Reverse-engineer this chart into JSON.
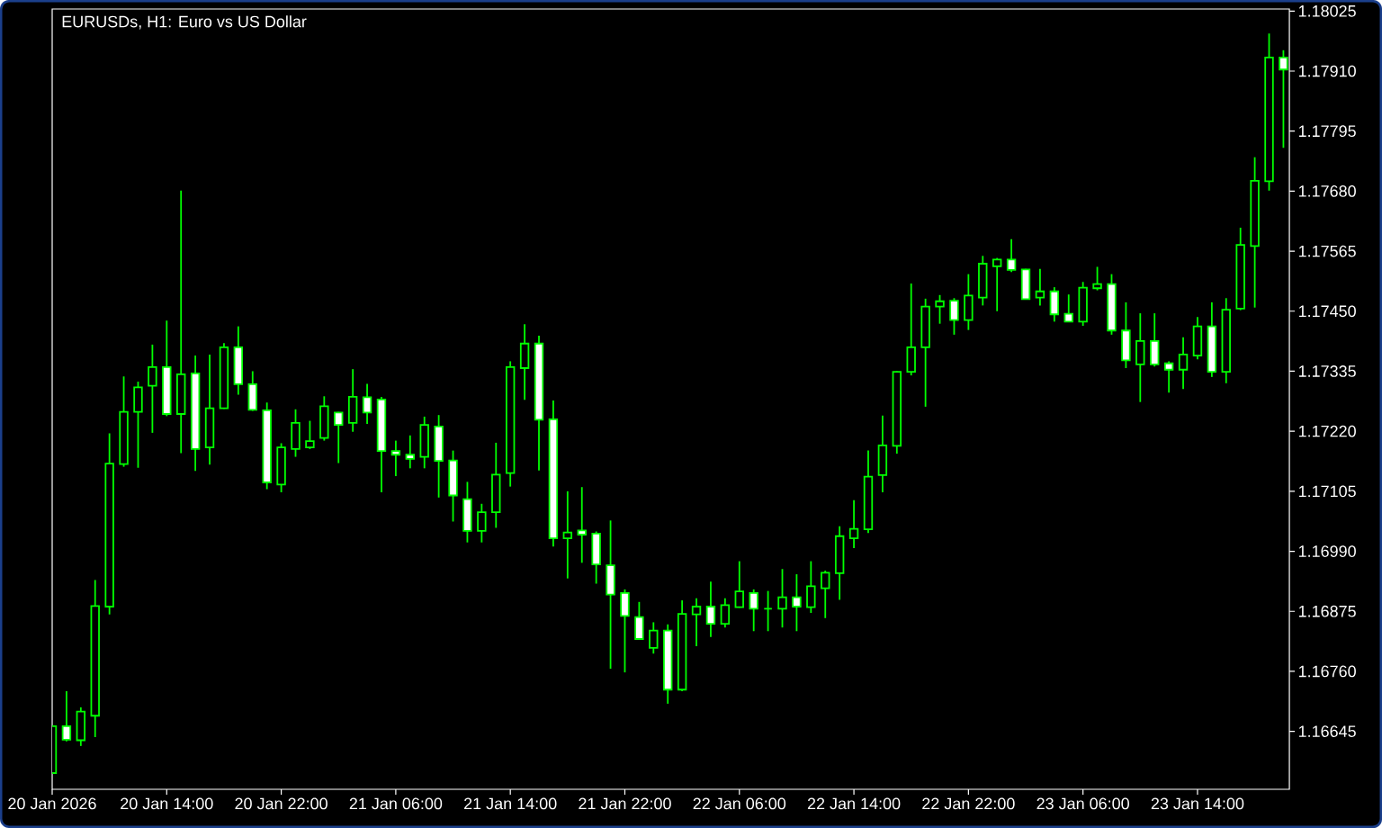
{
  "chart_data": {
    "type": "candlestick",
    "title": "EURUSDs, H1: Euro vs US Dollar",
    "x": [
      "2026-01-20T06:00",
      "2026-01-20T07:00",
      "2026-01-20T08:00",
      "2026-01-20T09:00",
      "2026-01-20T10:00",
      "2026-01-20T11:00",
      "2026-01-20T12:00",
      "2026-01-20T13:00",
      "2026-01-20T14:00",
      "2026-01-20T15:00",
      "2026-01-20T16:00",
      "2026-01-20T17:00",
      "2026-01-20T18:00",
      "2026-01-20T19:00",
      "2026-01-20T20:00",
      "2026-01-20T21:00",
      "2026-01-20T22:00",
      "2026-01-20T23:00",
      "2026-01-21T00:00",
      "2026-01-21T01:00",
      "2026-01-21T02:00",
      "2026-01-21T03:00",
      "2026-01-21T04:00",
      "2026-01-21T05:00",
      "2026-01-21T06:00",
      "2026-01-21T07:00",
      "2026-01-21T08:00",
      "2026-01-21T09:00",
      "2026-01-21T10:00",
      "2026-01-21T11:00",
      "2026-01-21T12:00",
      "2026-01-21T13:00",
      "2026-01-21T14:00",
      "2026-01-21T15:00",
      "2026-01-21T16:00",
      "2026-01-21T17:00",
      "2026-01-21T18:00",
      "2026-01-21T19:00",
      "2026-01-21T20:00",
      "2026-01-21T21:00",
      "2026-01-21T22:00",
      "2026-01-21T23:00",
      "2026-01-22T00:00",
      "2026-01-22T01:00",
      "2026-01-22T02:00",
      "2026-01-22T03:00",
      "2026-01-22T04:00",
      "2026-01-22T05:00",
      "2026-01-22T06:00",
      "2026-01-22T07:00",
      "2026-01-22T08:00",
      "2026-01-22T09:00",
      "2026-01-22T10:00",
      "2026-01-22T11:00",
      "2026-01-22T12:00",
      "2026-01-22T13:00",
      "2026-01-22T14:00",
      "2026-01-22T15:00",
      "2026-01-22T16:00",
      "2026-01-22T17:00",
      "2026-01-22T18:00",
      "2026-01-22T19:00",
      "2026-01-22T20:00",
      "2026-01-22T21:00",
      "2026-01-22T22:00",
      "2026-01-22T23:00",
      "2026-01-23T00:00",
      "2026-01-23T01:00",
      "2026-01-23T02:00",
      "2026-01-23T03:00",
      "2026-01-23T04:00",
      "2026-01-23T05:00",
      "2026-01-23T06:00",
      "2026-01-23T07:00",
      "2026-01-23T08:00",
      "2026-01-23T09:00",
      "2026-01-23T10:00",
      "2026-01-23T11:00",
      "2026-01-23T12:00",
      "2026-01-23T13:00",
      "2026-01-23T14:00",
      "2026-01-23T15:00",
      "2026-01-23T16:00",
      "2026-01-23T17:00",
      "2026-01-23T18:00",
      "2026-01-23T19:00",
      "2026-01-23T20:00"
    ],
    "ohlc": [
      [
        1.16565,
        1.16657,
        1.16564,
        1.16655
      ],
      [
        1.16655,
        1.16722,
        1.16626,
        1.16629
      ],
      [
        1.16628,
        1.16691,
        1.16617,
        1.16683
      ],
      [
        1.16675,
        1.16935,
        1.16634,
        1.16885
      ],
      [
        1.16884,
        1.17216,
        1.16869,
        1.17158
      ],
      [
        1.17157,
        1.17325,
        1.17152,
        1.17257
      ],
      [
        1.17257,
        1.17315,
        1.1715,
        1.17304
      ],
      [
        1.17307,
        1.17386,
        1.17217,
        1.17343
      ],
      [
        1.17343,
        1.17432,
        1.17249,
        1.17253
      ],
      [
        1.17253,
        1.17681,
        1.17178,
        1.17329
      ],
      [
        1.17331,
        1.17365,
        1.17144,
        1.17186
      ],
      [
        1.17189,
        1.17367,
        1.17156,
        1.17264
      ],
      [
        1.17264,
        1.17389,
        1.17263,
        1.17381
      ],
      [
        1.17381,
        1.17421,
        1.1729,
        1.1731
      ],
      [
        1.1731,
        1.17335,
        1.17259,
        1.17261
      ],
      [
        1.1726,
        1.17275,
        1.17109,
        1.17122
      ],
      [
        1.17118,
        1.17197,
        1.17103,
        1.17189
      ],
      [
        1.17186,
        1.17262,
        1.17171,
        1.17236
      ],
      [
        1.17189,
        1.1724,
        1.17186,
        1.17201
      ],
      [
        1.17207,
        1.17287,
        1.17202,
        1.17268
      ],
      [
        1.17256,
        1.17257,
        1.17159,
        1.17232
      ],
      [
        1.17236,
        1.17339,
        1.17219,
        1.17286
      ],
      [
        1.17285,
        1.17311,
        1.17234,
        1.17256
      ],
      [
        1.17281,
        1.17286,
        1.17103,
        1.17182
      ],
      [
        1.17182,
        1.17202,
        1.17134,
        1.17175
      ],
      [
        1.17175,
        1.17212,
        1.17149,
        1.17167
      ],
      [
        1.17171,
        1.17248,
        1.17149,
        1.17232
      ],
      [
        1.17229,
        1.17251,
        1.17093,
        1.17163
      ],
      [
        1.17164,
        1.17183,
        1.17047,
        1.17097
      ],
      [
        1.1709,
        1.17123,
        1.17007,
        1.17029
      ],
      [
        1.17029,
        1.17081,
        1.17007,
        1.17065
      ],
      [
        1.17065,
        1.17198,
        1.17035,
        1.17137
      ],
      [
        1.1714,
        1.17354,
        1.17114,
        1.17343
      ],
      [
        1.17341,
        1.17425,
        1.1728,
        1.17388
      ],
      [
        1.17388,
        1.17403,
        1.17145,
        1.17242
      ],
      [
        1.17243,
        1.17279,
        1.16999,
        1.17015
      ],
      [
        1.17015,
        1.17105,
        1.16938,
        1.17026
      ],
      [
        1.1703,
        1.17113,
        1.16968,
        1.17022
      ],
      [
        1.17024,
        1.17028,
        1.16928,
        1.16965
      ],
      [
        1.16963,
        1.17049,
        1.16765,
        1.16907
      ],
      [
        1.1691,
        1.16917,
        1.16758,
        1.16866
      ],
      [
        1.16864,
        1.16893,
        1.16821,
        1.16822
      ],
      [
        1.16805,
        1.16854,
        1.16794,
        1.16838
      ],
      [
        1.16838,
        1.1685,
        1.16698,
        1.16725
      ],
      [
        1.16725,
        1.16896,
        1.16722,
        1.1687
      ],
      [
        1.16869,
        1.169,
        1.16808,
        1.16884
      ],
      [
        1.16884,
        1.16932,
        1.16826,
        1.16851
      ],
      [
        1.16851,
        1.169,
        1.16844,
        1.16887
      ],
      [
        1.16883,
        1.16971,
        1.16882,
        1.16913
      ],
      [
        1.1691,
        1.16917,
        1.16837,
        1.1688
      ],
      [
        1.1688,
        1.16914,
        1.16837,
        1.1688
      ],
      [
        1.1688,
        1.16956,
        1.16844,
        1.16902
      ],
      [
        1.16902,
        1.16946,
        1.16837,
        1.16884
      ],
      [
        1.16883,
        1.16971,
        1.16872,
        1.16923
      ],
      [
        1.16919,
        1.16953,
        1.16862,
        1.16949
      ],
      [
        1.16948,
        1.17038,
        1.16897,
        1.17019
      ],
      [
        1.17015,
        1.17088,
        1.16996,
        1.17033
      ],
      [
        1.17032,
        1.17183,
        1.17025,
        1.17133
      ],
      [
        1.17136,
        1.1725,
        1.17103,
        1.17193
      ],
      [
        1.17192,
        1.17335,
        1.17177,
        1.17334
      ],
      [
        1.17334,
        1.17503,
        1.17327,
        1.17381
      ],
      [
        1.17381,
        1.17474,
        1.17267,
        1.17459
      ],
      [
        1.17459,
        1.17481,
        1.17426,
        1.17469
      ],
      [
        1.1747,
        1.17475,
        1.17405,
        1.17433
      ],
      [
        1.17433,
        1.17521,
        1.17414,
        1.1748
      ],
      [
        1.17476,
        1.17556,
        1.17461,
        1.17541
      ],
      [
        1.17536,
        1.17552,
        1.1745,
        1.17549
      ],
      [
        1.17549,
        1.17588,
        1.17525,
        1.17529
      ],
      [
        1.1753,
        1.17531,
        1.17472,
        1.17473
      ],
      [
        1.17476,
        1.17531,
        1.17461,
        1.17488
      ],
      [
        1.17488,
        1.17496,
        1.1743,
        1.17444
      ],
      [
        1.17445,
        1.17482,
        1.17429,
        1.1743
      ],
      [
        1.1743,
        1.17506,
        1.17422,
        1.17495
      ],
      [
        1.17494,
        1.17535,
        1.1749,
        1.17502
      ],
      [
        1.17502,
        1.17521,
        1.17405,
        1.17413
      ],
      [
        1.17413,
        1.17467,
        1.17341,
        1.17356
      ],
      [
        1.17348,
        1.17446,
        1.17276,
        1.17393
      ],
      [
        1.17393,
        1.17446,
        1.17344,
        1.17348
      ],
      [
        1.1735,
        1.17354,
        1.17294,
        1.17338
      ],
      [
        1.17338,
        1.174,
        1.17301,
        1.17367
      ],
      [
        1.17365,
        1.17439,
        1.17358,
        1.17421
      ],
      [
        1.17421,
        1.17467,
        1.17324,
        1.17334
      ],
      [
        1.17334,
        1.17475,
        1.17312,
        1.17453
      ],
      [
        1.17455,
        1.1761,
        1.17452,
        1.17577
      ],
      [
        1.17575,
        1.17745,
        1.17457,
        1.177
      ],
      [
        1.17699,
        1.17982,
        1.17681,
        1.17936
      ],
      [
        1.17936,
        1.1795,
        1.17763,
        1.17913
      ]
    ],
    "color": "#00ff00",
    "colors": [
      "#000000",
      "#ffffff",
      "#000000",
      "#000000",
      "#000000",
      "#000000",
      "#000000",
      "#000000",
      "#ffffff",
      "#000000",
      "#ffffff",
      "#000000",
      "#000000",
      "#ffffff",
      "#ffffff",
      "#ffffff",
      "#000000",
      "#000000",
      "#000000",
      "#000000",
      "#ffffff",
      "#000000",
      "#ffffff",
      "#ffffff",
      "#ffffff",
      "#ffffff",
      "#000000",
      "#ffffff",
      "#ffffff",
      "#ffffff",
      "#000000",
      "#000000",
      "#000000",
      "#000000",
      "#ffffff",
      "#ffffff",
      "#000000",
      "#ffffff",
      "#ffffff",
      "#ffffff",
      "#ffffff",
      "#ffffff",
      "#000000",
      "#ffffff",
      "#000000",
      "#000000",
      "#ffffff",
      "#000000",
      "#000000",
      "#ffffff",
      "#00ff00",
      "#000000",
      "#ffffff",
      "#000000",
      "#000000",
      "#000000",
      "#000000",
      "#000000",
      "#000000",
      "#000000",
      "#000000",
      "#000000",
      "#000000",
      "#ffffff",
      "#000000",
      "#000000",
      "#000000",
      "#ffffff",
      "#ffffff",
      "#000000",
      "#ffffff",
      "#ffffff",
      "#000000",
      "#000000",
      "#ffffff",
      "#ffffff",
      "#000000",
      "#ffffff",
      "#ffffff",
      "#000000",
      "#000000",
      "#ffffff",
      "#000000",
      "#000000",
      "#000000",
      "#000000",
      "#ffffff"
    ],
    "xlim": [
      "2026-01-20T06:00",
      "2026-01-23T20:25"
    ],
    "ylim": [
      1.16534,
      1.18029
    ],
    "xticks": [
      {
        "value": "2026-01-20T06:00",
        "label": "20 Jan 2026"
      },
      {
        "value": "2026-01-20T14:00",
        "label": "20 Jan 14:00"
      },
      {
        "value": "2026-01-20T22:00",
        "label": "20 Jan 22:00"
      },
      {
        "value": "2026-01-21T06:00",
        "label": "21 Jan 06:00"
      },
      {
        "value": "2026-01-21T14:00",
        "label": "21 Jan 14:00"
      },
      {
        "value": "2026-01-21T22:00",
        "label": "21 Jan 22:00"
      },
      {
        "value": "2026-01-22T06:00",
        "label": "22 Jan 06:00"
      },
      {
        "value": "2026-01-22T14:00",
        "label": "22 Jan 14:00"
      },
      {
        "value": "2026-01-22T22:00",
        "label": "22 Jan 22:00"
      },
      {
        "value": "2026-01-23T06:00",
        "label": "23 Jan 06:00"
      },
      {
        "value": "2026-01-23T14:00",
        "label": "23 Jan 14:00"
      }
    ],
    "yticks": [
      1.16645,
      {
        "value": 1.1676,
        "label": "1.16760"
      },
      1.16875,
      {
        "value": 1.1699,
        "label": "1.16990"
      },
      1.17105,
      {
        "value": 1.1722,
        "label": "1.17220"
      },
      1.17335,
      {
        "value": 1.1745,
        "label": "1.17450"
      },
      1.17565,
      {
        "value": 1.1768,
        "label": "1.17680"
      },
      1.17795,
      {
        "value": 1.1791,
        "label": "1.17910"
      },
      1.18025
    ]
  }
}
